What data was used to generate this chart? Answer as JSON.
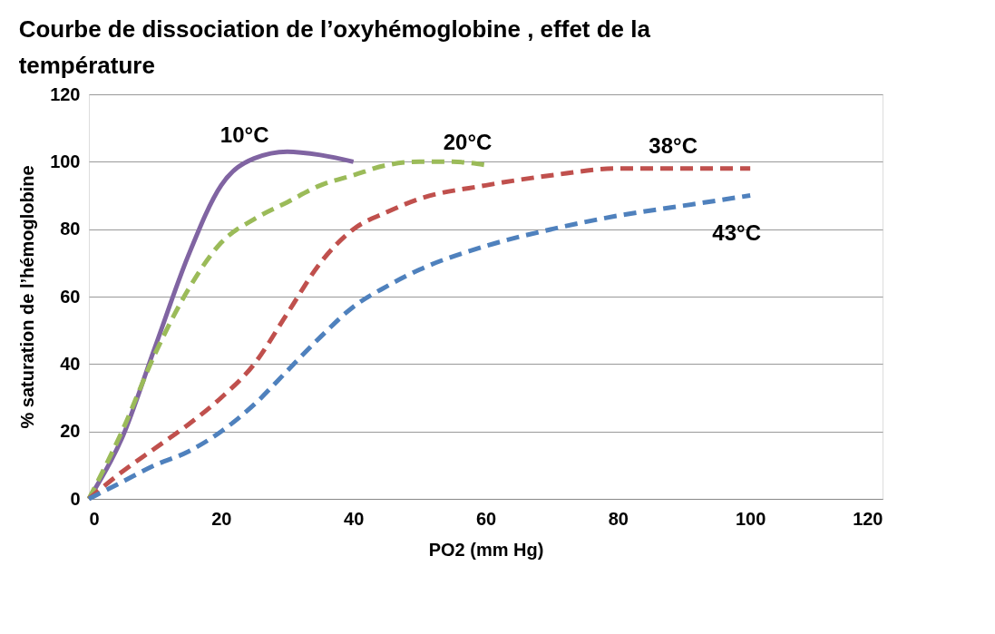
{
  "chart_data": {
    "type": "line",
    "title": "Courbe de dissociation de l’oxyhémoglobine , effet de la température",
    "xlabel": "PO2 (mm Hg)",
    "ylabel": "% saturation de l’hémoglobine",
    "xlim": [
      0,
      120
    ],
    "xticks": [
      0,
      20,
      40,
      60,
      80,
      100,
      120
    ],
    "ylim": [
      0,
      120
    ],
    "yticks": [
      0,
      20,
      40,
      60,
      80,
      100,
      120
    ],
    "grid": "y",
    "legend": false,
    "series": [
      {
        "name": "10°C",
        "color": "#8064a2",
        "line_style": "solid",
        "x": [
          0,
          5,
          10,
          15,
          20,
          25,
          30,
          35,
          40
        ],
        "values": [
          0,
          18,
          45,
          72,
          93,
          101,
          103,
          102,
          100
        ]
      },
      {
        "name": "20°C",
        "color": "#9bbb59",
        "line_style": "dashed",
        "x": [
          0,
          5,
          10,
          15,
          20,
          25,
          30,
          35,
          40,
          45,
          50,
          55,
          60
        ],
        "values": [
          0,
          20,
          43,
          62,
          76,
          83,
          88,
          93,
          96,
          99,
          100,
          100,
          99
        ]
      },
      {
        "name": "38°C",
        "color": "#c0504d",
        "line_style": "dashed",
        "x": [
          0,
          5,
          10,
          15,
          20,
          25,
          30,
          35,
          40,
          45,
          50,
          60,
          70,
          80,
          90,
          100
        ],
        "values": [
          0,
          8,
          15,
          22,
          30,
          40,
          55,
          70,
          80,
          85,
          89,
          93,
          96,
          98,
          98,
          98
        ]
      },
      {
        "name": "43°C",
        "color": "#4f81bd",
        "line_style": "dashed",
        "x": [
          0,
          5,
          10,
          15,
          20,
          25,
          30,
          35,
          40,
          45,
          50,
          60,
          70,
          80,
          90,
          100
        ],
        "values": [
          0,
          5,
          10,
          14,
          20,
          28,
          38,
          48,
          57,
          63,
          68,
          75,
          80,
          84,
          87,
          90
        ]
      }
    ]
  }
}
